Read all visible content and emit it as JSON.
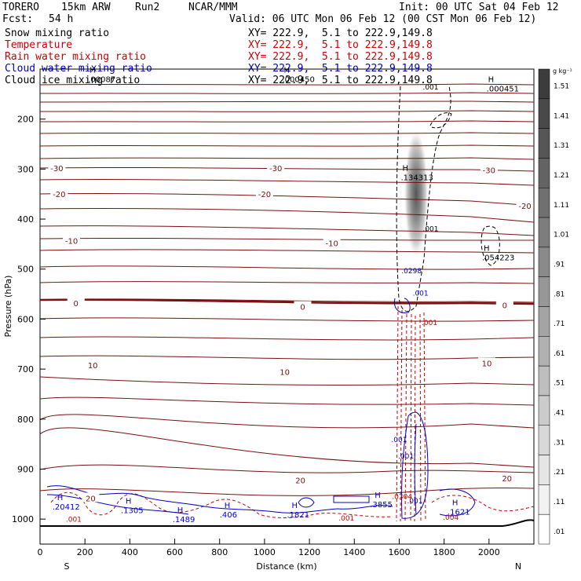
{
  "header": {
    "model": "TORERO",
    "resolution": "15km ARW",
    "run": "Run2",
    "org": "NCAR/MMM",
    "init": "Init: 00 UTC Sat 04 Feb 12",
    "fcst_label": "Fcst:",
    "fcst_value": "54 h",
    "valid": "Valid: 06 UTC Mon 06 Feb 12 (00 CST Mon 06 Feb 12)"
  },
  "legend": [
    {
      "name": "Snow mixing ratio",
      "color": "#000000",
      "xy": "XY= 222.9,  5.1 to 222.9,149.8"
    },
    {
      "name": "Temperature",
      "color": "#cc0000",
      "xy": "XY= 222.9,  5.1 to 222.9,149.8"
    },
    {
      "name": "Rain water mixing ratio",
      "color": "#cc0000",
      "xy": "XY= 222.9,  5.1 to 222.9,149.8"
    },
    {
      "name": "Cloud water mixing ratio",
      "color": "#0000cc",
      "xy": "XY= 222.9,  5.1 to 222.9,149.8"
    },
    {
      "name": "Cloud ice mixing ratio",
      "color": "#000000",
      "xy": "XY= 222.9,  5.1 to 222.9,149.8"
    }
  ],
  "colorbar": {
    "unit": "g kg⁻¹",
    "labels": [
      "1.51",
      "1.41",
      "1.31",
      "1.21",
      "1.11",
      "1.01",
      ".91",
      ".81",
      ".71",
      ".61",
      ".51",
      ".41",
      ".31",
      ".21",
      ".11",
      ".01"
    ]
  },
  "chart_data": {
    "type": "contour cross-section",
    "ylabel": "Pressure (hPa)",
    "xlabel": "Distance (km)",
    "x_end_left": "S",
    "x_end_right": "N",
    "xlim": [
      0,
      2200
    ],
    "ylim": [
      1050,
      100
    ],
    "x_ticks": [
      0,
      200,
      400,
      600,
      800,
      1000,
      1200,
      1400,
      1600,
      1800,
      2000
    ],
    "y_ticks": [
      200,
      300,
      400,
      500,
      600,
      700,
      800,
      900,
      1000
    ],
    "temperature_contours": [
      {
        "level": -30,
        "label_x_km": [
          75,
          1050,
          2000
        ],
        "label_p": [
          298,
          298,
          302
        ]
      },
      {
        "level": -20,
        "label_x_km": [
          85,
          1000,
          2160
        ],
        "label_p": [
          350,
          350,
          373
        ]
      },
      {
        "level": -10,
        "label_x_km": [
          140,
          1300
        ],
        "label_p": [
          443,
          448
        ]
      },
      {
        "level": 0,
        "label_x_km": [
          160,
          1170,
          2070
        ],
        "label_p": [
          568,
          575,
          572
        ]
      },
      {
        "level": 10,
        "label_x_km": [
          235,
          1090,
          1990
        ],
        "label_p": [
          692,
          705,
          688
        ]
      },
      {
        "level": 20,
        "label_x_km": [
          225,
          1160,
          2080
        ],
        "label_p": [
          958,
          922,
          918
        ]
      }
    ],
    "snow_max_labels": [
      {
        "text": "H",
        "value": ".134313",
        "x_km": 1628,
        "p": 310
      },
      {
        "text": "H",
        "value": ".054223",
        "x_km": 1990,
        "p": 470
      },
      {
        "text": "H",
        "value": ".000451",
        "x_km": 2010,
        "p": 132
      },
      {
        "text": "H",
        "value": ".000450",
        "x_km": 1100,
        "p": 113
      },
      {
        "text": "H",
        "value": ".00087",
        "x_km": 235,
        "p": 113
      }
    ],
    "contour_value_labels": [
      {
        "text": ".001",
        "x_km": 1740,
        "p": 141,
        "color": "#000000"
      },
      {
        "text": ".001",
        "x_km": 1740,
        "p": 424,
        "color": "#000000"
      },
      {
        "text": ".001",
        "x_km": 1695,
        "p": 553,
        "color": "#0000cc"
      },
      {
        "text": ".001",
        "x_km": 1735,
        "p": 612,
        "color": "#cc0000"
      },
      {
        "text": ".0298",
        "x_km": 1655,
        "p": 508,
        "color": "#0000cc"
      },
      {
        "text": ".001",
        "x_km": 1600,
        "p": 846,
        "color": "#0000cc"
      },
      {
        "text": ".001",
        "x_km": 1630,
        "p": 879,
        "color": "#0000cc"
      },
      {
        "text": ".001",
        "x_km": 1670,
        "p": 968,
        "color": "#0000cc"
      },
      {
        "text": ".0304",
        "x_km": 1613,
        "p": 960,
        "color": "#cc0000"
      },
      {
        "text": ".001",
        "x_km": 150,
        "p": 1005,
        "color": "#cc0000"
      },
      {
        "text": ".001",
        "x_km": 1365,
        "p": 1003,
        "color": "#cc0000"
      },
      {
        "text": ".004",
        "x_km": 1830,
        "p": 1001,
        "color": "#cc0000"
      }
    ],
    "cloud_water_max_labels": [
      {
        "text": "H",
        "value": ".20412",
        "x_km": 90,
        "p": 975
      },
      {
        "text": "H",
        "value": ".1305",
        "x_km": 395,
        "p": 982
      },
      {
        "text": "H",
        "value": ".1489",
        "x_km": 625,
        "p": 1000
      },
      {
        "text": "H",
        "value": ".406",
        "x_km": 835,
        "p": 990
      },
      {
        "text": "H",
        "value": ".1821",
        "x_km": 1135,
        "p": 990
      },
      {
        "text": "H",
        "value": ".3855",
        "x_km": 1505,
        "p": 970
      },
      {
        "text": "H",
        "value": ".1621",
        "x_km": 1850,
        "p": 985
      }
    ]
  }
}
